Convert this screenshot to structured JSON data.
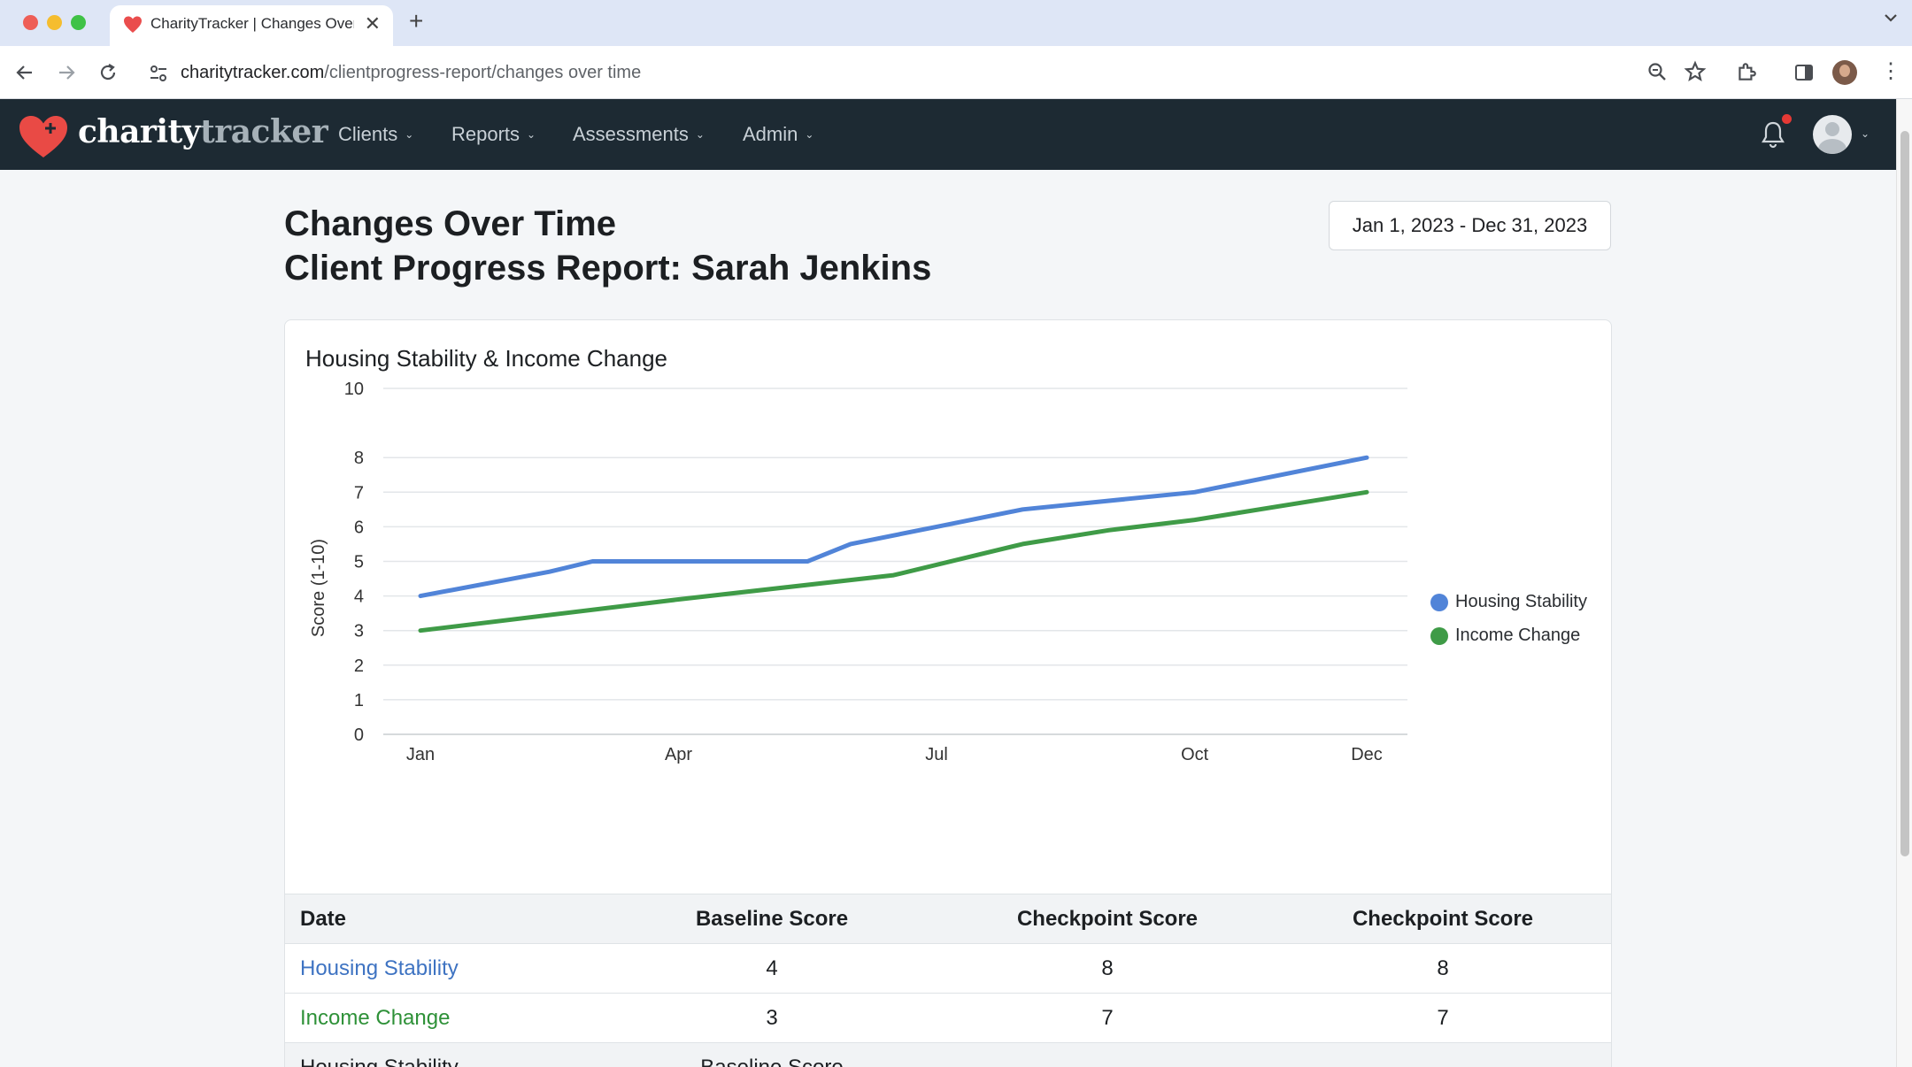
{
  "browser": {
    "tab_title": "CharityTracker | Changes Over Time",
    "new_tab": "+",
    "url_host": "charitytracker.com",
    "url_path": "/clientprogress-report/changes over time"
  },
  "nav": {
    "brand_a": "charity",
    "brand_b": "tracker",
    "items": [
      {
        "label": "Clients"
      },
      {
        "label": "Reports"
      },
      {
        "label": "Assessments"
      },
      {
        "label": "Admin"
      }
    ]
  },
  "header": {
    "title": "Changes Over Time",
    "subtitle": "Client Progress Report: Sarah Jenkins",
    "date_range": "Jan 1, 2023 - Dec 31, 2023"
  },
  "chart_data": {
    "type": "line",
    "title": "Housing Stability & Income Change",
    "xlabel": "",
    "ylabel": "Score (1-10)",
    "x_ticks": [
      "Jan",
      "Apr",
      "Jul",
      "Oct",
      "Dec"
    ],
    "y_ticks": [
      0,
      1,
      2,
      3,
      4,
      5,
      6,
      7,
      8,
      10
    ],
    "ylim": [
      0,
      10
    ],
    "grid": true,
    "legend_position": "right",
    "series": [
      {
        "name": "Housing Stability",
        "color": "#5184d8",
        "points": [
          [
            1,
            4
          ],
          [
            2.5,
            4.7
          ],
          [
            3,
            5
          ],
          [
            5.5,
            5
          ],
          [
            6,
            5.5
          ],
          [
            7,
            6
          ],
          [
            8,
            6.5
          ],
          [
            10,
            7
          ],
          [
            12,
            8
          ]
        ]
      },
      {
        "name": "Income Change",
        "color": "#3f9b47",
        "points": [
          [
            1,
            3
          ],
          [
            4,
            3.9
          ],
          [
            6.5,
            4.6
          ],
          [
            8,
            5.5
          ],
          [
            9,
            5.9
          ],
          [
            10,
            6.2
          ],
          [
            12,
            7
          ]
        ]
      }
    ]
  },
  "table": {
    "headers": [
      "Date",
      "Baseline Score",
      "Checkpoint Score",
      "Checkpoint Score"
    ],
    "rows": [
      {
        "name": "Housing Stability",
        "values": [
          "4",
          "8",
          "8"
        ]
      },
      {
        "name": "Income Change",
        "values": [
          "3",
          "7",
          "7"
        ]
      }
    ],
    "partial_row": {
      "name": "Housing Stability",
      "baseline": "Baseline Score"
    }
  }
}
